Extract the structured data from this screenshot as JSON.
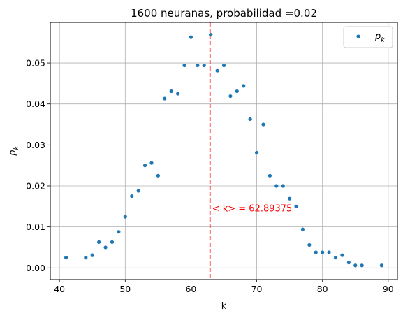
{
  "chart_data": {
    "type": "scatter",
    "title": "1600 neuranas, probabilidad =0.02",
    "xlabel": "k",
    "ylabel": "p_k",
    "xlim": [
      38.6,
      91.4
    ],
    "ylim": [
      -0.00285,
      0.0599
    ],
    "xticks": [
      40,
      50,
      60,
      70,
      80,
      90
    ],
    "yticks": [
      0.0,
      0.01,
      0.02,
      0.03,
      0.04,
      0.05
    ],
    "ytick_labels": [
      "0.00",
      "0.01",
      "0.02",
      "0.03",
      "0.04",
      "0.05"
    ],
    "grid": true,
    "legend": {
      "placement": "top-right",
      "entries": [
        "p_k"
      ]
    },
    "marker_color": "#1f77b4",
    "series": [
      {
        "name": "p_k",
        "points": [
          [
            41,
            0.0025
          ],
          [
            44,
            0.0025
          ],
          [
            45,
            0.0031
          ],
          [
            46,
            0.0063
          ],
          [
            47,
            0.005
          ],
          [
            48,
            0.0063
          ],
          [
            49,
            0.0088
          ],
          [
            50,
            0.0125
          ],
          [
            51,
            0.0175
          ],
          [
            52,
            0.0188
          ],
          [
            53,
            0.025
          ],
          [
            54,
            0.0256
          ],
          [
            55,
            0.0225
          ],
          [
            56,
            0.0413
          ],
          [
            57,
            0.0431
          ],
          [
            58,
            0.0425
          ],
          [
            59,
            0.0494
          ],
          [
            60,
            0.0563
          ],
          [
            61,
            0.0494
          ],
          [
            62,
            0.0494
          ],
          [
            63,
            0.0569
          ],
          [
            64,
            0.0481
          ],
          [
            65,
            0.0494
          ],
          [
            66,
            0.0419
          ],
          [
            67,
            0.0431
          ],
          [
            68,
            0.0444
          ],
          [
            69,
            0.0363
          ],
          [
            70,
            0.0281
          ],
          [
            71,
            0.035
          ],
          [
            72,
            0.0225
          ],
          [
            73,
            0.02
          ],
          [
            74,
            0.02
          ],
          [
            75,
            0.0169
          ],
          [
            76,
            0.015
          ],
          [
            77,
            0.0094
          ],
          [
            78,
            0.0056
          ],
          [
            79,
            0.0038
          ],
          [
            80,
            0.0038
          ],
          [
            81,
            0.0038
          ],
          [
            82,
            0.0025
          ],
          [
            83,
            0.0031
          ],
          [
            84,
            0.0013
          ],
          [
            85,
            0.0006
          ],
          [
            86,
            0.0006
          ],
          [
            89,
            0.0006
          ]
        ]
      }
    ],
    "mean_line": {
      "x": 62.89375,
      "color": "#ff0000",
      "style": "dashed",
      "label": "< k> = 62.89375"
    }
  }
}
